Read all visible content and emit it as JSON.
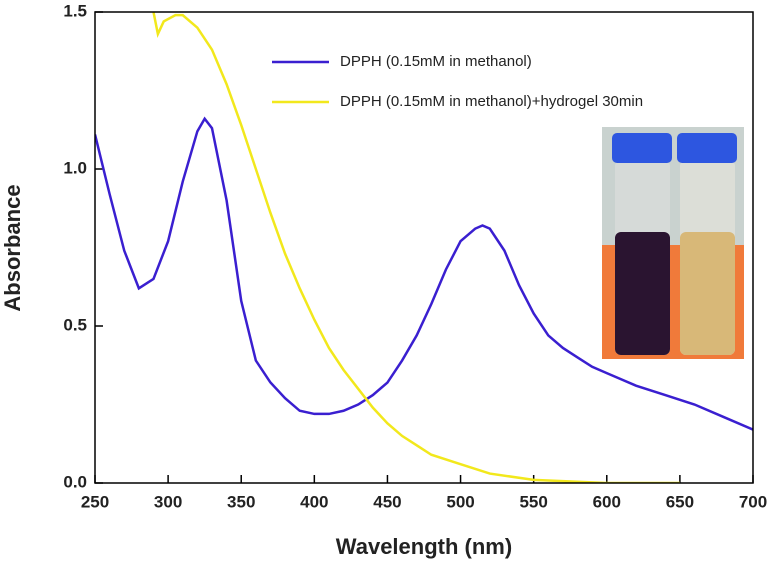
{
  "chart_data": {
    "type": "line",
    "x_label": "Wavelength (nm)",
    "y_label": "Absorbance",
    "xlim": [
      250,
      700
    ],
    "xticks": [
      250,
      300,
      350,
      400,
      450,
      500,
      550,
      600,
      650,
      700
    ],
    "ylim": [
      0,
      1.5
    ],
    "yticks": [
      {
        "value": 0,
        "label": "0.0"
      },
      {
        "value": 0.5,
        "label": "0.5"
      },
      {
        "value": 1,
        "label": "1.0"
      },
      {
        "value": 1.5,
        "label": "1.5"
      }
    ],
    "legend": "upper right",
    "series": [
      {
        "name": "DPPH (0.15mM in methanol)",
        "color": "#3a1fd0",
        "x": [
          250,
          260,
          270,
          280,
          290,
          300,
          310,
          320,
          325,
          330,
          340,
          350,
          360,
          370,
          380,
          390,
          400,
          410,
          420,
          430,
          440,
          450,
          460,
          470,
          480,
          490,
          500,
          510,
          515,
          520,
          530,
          540,
          550,
          560,
          570,
          580,
          590,
          600,
          620,
          640,
          660,
          680,
          700
        ],
        "values": [
          1.11,
          0.92,
          0.74,
          0.62,
          0.65,
          0.77,
          0.96,
          1.12,
          1.16,
          1.13,
          0.9,
          0.58,
          0.39,
          0.32,
          0.27,
          0.23,
          0.22,
          0.22,
          0.23,
          0.25,
          0.28,
          0.32,
          0.39,
          0.47,
          0.57,
          0.68,
          0.77,
          0.81,
          0.82,
          0.81,
          0.74,
          0.63,
          0.54,
          0.47,
          0.43,
          0.4,
          0.37,
          0.35,
          0.31,
          0.28,
          0.25,
          0.21,
          0.17
        ]
      },
      {
        "name": "DPPH (0.15mM in methanol)+hydrogel 30min",
        "color": "#f2e81c",
        "x": [
          290,
          293,
          297,
          305,
          310,
          320,
          330,
          340,
          350,
          360,
          370,
          380,
          390,
          400,
          410,
          420,
          430,
          440,
          450,
          460,
          470,
          480,
          500,
          520,
          550,
          600,
          650
        ],
        "values": [
          1.5,
          1.43,
          1.47,
          1.49,
          1.49,
          1.45,
          1.38,
          1.27,
          1.14,
          1.0,
          0.86,
          0.73,
          0.62,
          0.52,
          0.43,
          0.36,
          0.3,
          0.24,
          0.19,
          0.15,
          0.12,
          0.09,
          0.06,
          0.03,
          0.01,
          0,
          0
        ]
      }
    ]
  }
}
